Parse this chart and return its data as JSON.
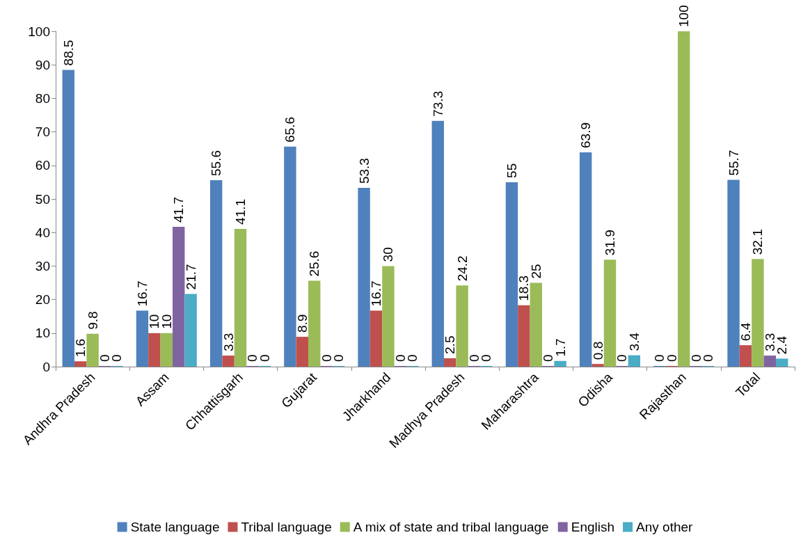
{
  "chart_data": {
    "type": "bar",
    "categories": [
      "Andhra Pradesh",
      "Assam",
      "Chhattisgarh",
      "Gujarat",
      "Jharkhand",
      "Madhya Pradesh",
      "Maharashtra",
      "Odisha",
      "Rajasthan",
      "Total"
    ],
    "series": [
      {
        "name": "State language",
        "color": "#4f81bd",
        "values": [
          88.5,
          16.7,
          55.6,
          65.6,
          53.3,
          73.3,
          55,
          63.9,
          0,
          55.7
        ]
      },
      {
        "name": "Tribal language",
        "color": "#c0504d",
        "values": [
          1.6,
          10,
          3.3,
          8.9,
          16.7,
          2.5,
          18.3,
          0.8,
          0,
          6.4
        ]
      },
      {
        "name": "A mix of state and tribal language",
        "color": "#9bbb59",
        "values": [
          9.8,
          10,
          41.1,
          25.6,
          30,
          24.2,
          25,
          31.9,
          100,
          32.1
        ]
      },
      {
        "name": "English",
        "color": "#8064a2",
        "values": [
          0,
          41.7,
          0,
          0,
          0,
          0,
          0,
          0,
          0,
          3.3
        ]
      },
      {
        "name": "Any other",
        "color": "#4bacc6",
        "values": [
          0,
          21.7,
          0,
          0,
          0,
          0,
          1.7,
          3.4,
          0,
          2.4
        ]
      }
    ],
    "ylim": [
      0,
      100
    ],
    "yticks": [
      0,
      10,
      20,
      30,
      40,
      50,
      60,
      70,
      80,
      90,
      100
    ],
    "grid": false,
    "legend": "bottom",
    "data_labels": true
  }
}
